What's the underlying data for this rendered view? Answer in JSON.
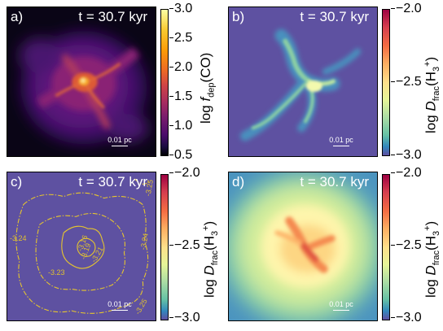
{
  "chart_data": [
    {
      "type": "heatmap",
      "panel_label": "a)",
      "time_text": "t = 30.7 kyr",
      "scale_bar": "0.01 pc",
      "colorbar": {
        "label": "log f_dep(CO)",
        "label_main": "log ",
        "label_italic": "f",
        "label_sub": "dep",
        "label_tail": "(CO)",
        "ticks": [
          "3.0",
          "2.5",
          "2.0",
          "1.5",
          "1.0",
          "0.5"
        ],
        "range": [
          0.5,
          3.0
        ],
        "colormap": "inferno"
      }
    },
    {
      "type": "heatmap",
      "panel_label": "b)",
      "time_text": "t = 30.7 kyr",
      "scale_bar": "0.01 pc",
      "colorbar": {
        "label": "log D_frac(H3+)",
        "label_main": "log ",
        "label_italic": "D",
        "label_sub": "frac",
        "label_tail": "(H",
        "label_sub2": "3",
        "label_sup": "+",
        "label_end": ")",
        "ticks": [
          "−2.0",
          "−2.5",
          "−3.0"
        ],
        "range": [
          -3.0,
          -2.0
        ],
        "colormap": "Spectral_r"
      }
    },
    {
      "type": "heatmap",
      "panel_label": "c)",
      "time_text": "t = 30.7 kyr",
      "scale_bar": "0.01 pc",
      "contour_labels": [
        "-3.25",
        "-3.24",
        "-3.24",
        "-3.23",
        "-3.21",
        "-3.19",
        "-3.16",
        "-3.25"
      ],
      "colorbar": {
        "label": "log D_frac(H3+)",
        "label_main": "log ",
        "label_italic": "D",
        "label_sub": "frac",
        "label_tail": "(H",
        "label_sub2": "3",
        "label_sup": "+",
        "label_end": ")",
        "ticks": [
          "−2.0",
          "−2.5",
          "−3.0"
        ],
        "range": [
          -3.0,
          -2.0
        ],
        "colormap": "Spectral_r"
      }
    },
    {
      "type": "heatmap",
      "panel_label": "d)",
      "time_text": "t = 30.7 kyr",
      "scale_bar": "0.01 pc",
      "colorbar": {
        "label": "log D_frac(H3+)",
        "label_main": "log ",
        "label_italic": "D",
        "label_sub": "frac",
        "label_tail": "(H",
        "label_sub2": "3",
        "label_sup": "+",
        "label_end": ")",
        "ticks": [
          "−2.0",
          "−2.5",
          "−3.0"
        ],
        "range": [
          -3.0,
          -2.0
        ],
        "colormap": "Spectral_r"
      }
    }
  ],
  "colors": {
    "spectral_background": "#5e51a1",
    "contour": "#e6c52e",
    "inferno_dark": "#0a0516"
  }
}
